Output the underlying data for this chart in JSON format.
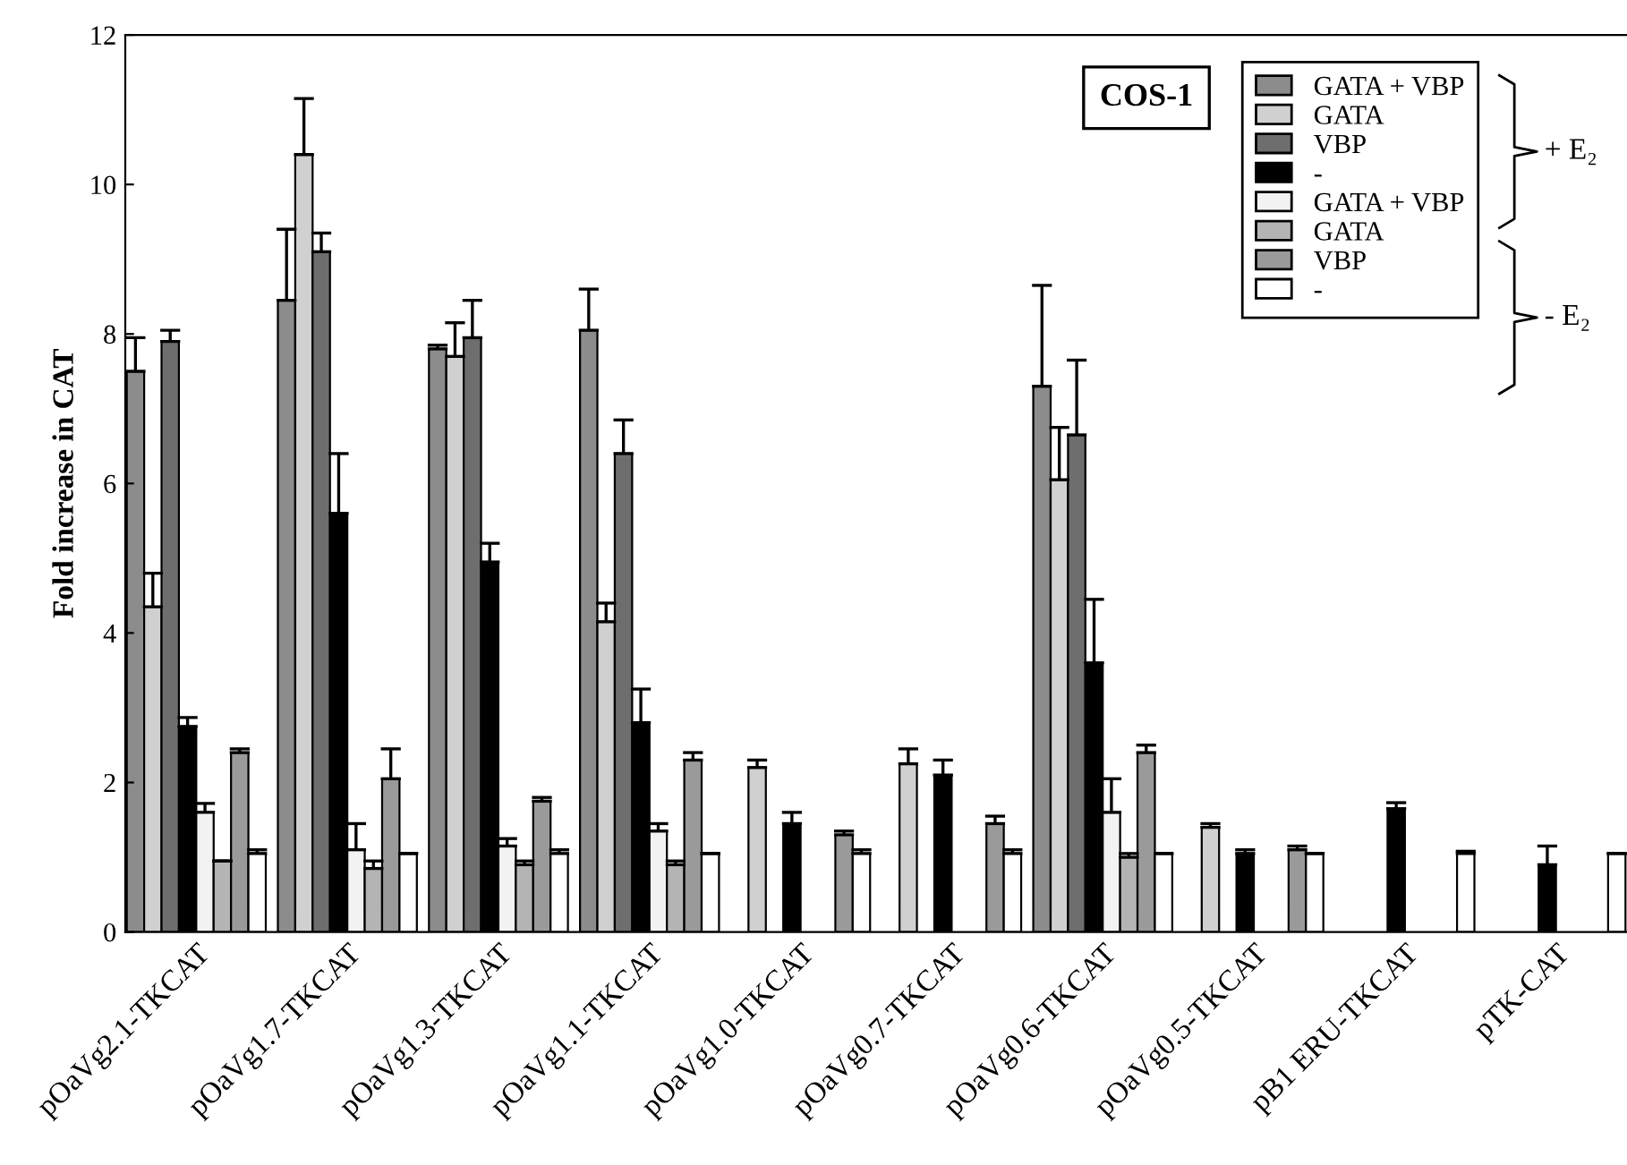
{
  "chart_data": {
    "type": "bar",
    "ylabel": "Fold increase in CAT",
    "categories": [
      "pOaVg2.1-TKCAT",
      "pOaVg1.7-TKCAT",
      "pOaVg1.3-TKCAT",
      "pOaVg1.1-TKCAT",
      "pOaVg1.0-TKCAT",
      "pOaVg0.7-TKCAT",
      "pOaVg0.6-TKCAT",
      "pOaVg0.5-TKCAT",
      "pB1 ERU-TKCAT",
      "pTK-CAT"
    ],
    "series": [
      {
        "name": "GATA + VBP",
        "color": "#8c8c8c",
        "values": [
          7.5,
          8.45,
          7.8,
          8.05,
          null,
          null,
          7.3,
          null,
          null,
          null
        ],
        "errors": [
          0.45,
          0.95,
          0.05,
          0.55,
          null,
          null,
          1.35,
          null,
          null,
          null
        ]
      },
      {
        "name": "GATA",
        "color": "#d0d0d0",
        "values": [
          4.35,
          10.4,
          7.7,
          4.15,
          2.2,
          2.25,
          6.05,
          1.4,
          null,
          null
        ],
        "errors": [
          0.45,
          0.75,
          0.45,
          0.25,
          0.1,
          0.2,
          0.7,
          0.05,
          null,
          null
        ]
      },
      {
        "name": "VBP",
        "color": "#6e6e6e",
        "values": [
          7.9,
          9.1,
          7.95,
          6.4,
          null,
          null,
          6.65,
          null,
          null,
          null
        ],
        "errors": [
          0.15,
          0.25,
          0.5,
          0.45,
          null,
          null,
          1.0,
          null,
          null,
          null
        ]
      },
      {
        "name": "-",
        "color": "#000000",
        "values": [
          2.75,
          5.6,
          4.95,
          2.8,
          1.45,
          2.1,
          3.6,
          1.05,
          1.65,
          0.9
        ],
        "errors": [
          0.12,
          0.8,
          0.25,
          0.45,
          0.15,
          0.2,
          0.85,
          0.05,
          0.08,
          0.25
        ]
      },
      {
        "name": "GATA + VBP",
        "color": "#f2f2f2",
        "values": [
          1.6,
          1.1,
          1.15,
          1.35,
          null,
          null,
          1.6,
          null,
          null,
          null
        ],
        "errors": [
          0.12,
          0.35,
          0.1,
          0.1,
          null,
          null,
          0.45,
          null,
          null,
          null
        ]
      },
      {
        "name": "GATA",
        "color": "#b4b4b4",
        "values": [
          0.95,
          0.85,
          0.9,
          0.9,
          null,
          null,
          1.0,
          null,
          null,
          null
        ],
        "errors": [
          null,
          0.1,
          0.05,
          0.05,
          null,
          null,
          0.05,
          null,
          null,
          null
        ]
      },
      {
        "name": "VBP",
        "color": "#9a9a9a",
        "values": [
          2.4,
          2.05,
          1.75,
          2.3,
          1.3,
          1.45,
          2.4,
          1.1,
          null,
          null
        ],
        "errors": [
          0.05,
          0.4,
          0.05,
          0.1,
          0.05,
          0.1,
          0.1,
          0.05,
          null,
          null
        ]
      },
      {
        "name": "-",
        "color": "#ffffff",
        "values": [
          1.05,
          1.05,
          1.05,
          1.05,
          1.05,
          1.05,
          1.05,
          1.05,
          1.05,
          1.05
        ],
        "errors": [
          0.05,
          null,
          0.05,
          null,
          0.05,
          0.05,
          null,
          null,
          0.03,
          null
        ]
      }
    ],
    "ylim": [
      0,
      12
    ],
    "yticks": [
      0,
      2,
      4,
      6,
      8,
      10,
      12
    ],
    "grid": false,
    "legend": "top right",
    "annotations": [
      "COS-1",
      "+ E₂",
      "- E₂"
    ]
  }
}
